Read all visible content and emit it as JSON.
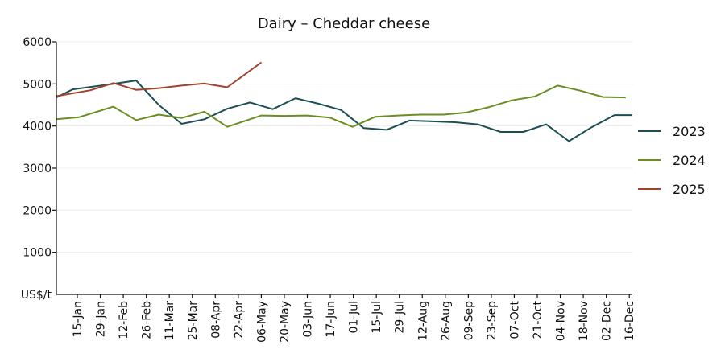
{
  "chart_data": {
    "type": "line",
    "title": "Dairy – Cheddar cheese",
    "ylabel": "US$/t",
    "ylim": [
      0,
      6000
    ],
    "y_ticks": [
      1000,
      2000,
      3000,
      4000,
      5000,
      6000
    ],
    "x_ticks": [
      "15-Jan",
      "29-Jan",
      "12-Feb",
      "26-Feb",
      "11-Mar",
      "25-Mar",
      "08-Apr",
      "22-Apr",
      "06-May",
      "20-May",
      "03-Jun",
      "17-Jun",
      "01-Jul",
      "15-Jul",
      "29-Jul",
      "12-Aug",
      "26-Aug",
      "09-Sep",
      "23-Sep",
      "07-Oct",
      "21-Oct",
      "04-Nov",
      "18-Nov",
      "02-Dec",
      "16-Dec"
    ],
    "grid": "horizontal",
    "legend_position": "right",
    "x_range": [
      0,
      354
    ],
    "series": [
      {
        "name": "2023",
        "color": "#1b4f54",
        "x": [
          0,
          10,
          35,
          49,
          63,
          77,
          91,
          105,
          119,
          133,
          147,
          161,
          175,
          189,
          203,
          217,
          231,
          245,
          259,
          273,
          287,
          301,
          315,
          329,
          343,
          354
        ],
        "values": [
          4680,
          4870,
          5000,
          5080,
          4500,
          4050,
          4160,
          4410,
          4560,
          4400,
          4660,
          4530,
          4380,
          3950,
          3910,
          4130,
          4110,
          4090,
          4040,
          3860,
          3860,
          4040,
          3640,
          3970,
          4260,
          4260
        ]
      },
      {
        "name": "2024",
        "color": "#6b8e23",
        "x": [
          0,
          14,
          35,
          49,
          63,
          77,
          91,
          105,
          126,
          140,
          154,
          168,
          182,
          196,
          210,
          224,
          238,
          252,
          266,
          280,
          294,
          308,
          322,
          336,
          350
        ],
        "values": [
          4160,
          4210,
          4460,
          4140,
          4270,
          4190,
          4340,
          3980,
          4250,
          4240,
          4250,
          4200,
          3980,
          4220,
          4250,
          4270,
          4270,
          4320,
          4450,
          4610,
          4700,
          4960,
          4840,
          4690,
          4680
        ]
      },
      {
        "name": "2025",
        "color": "#a0432d",
        "x": [
          0,
          21,
          35,
          49,
          63,
          77,
          91,
          105,
          126
        ],
        "values": [
          4710,
          4850,
          5020,
          4860,
          4900,
          4960,
          5010,
          4920,
          5510
        ]
      }
    ]
  }
}
